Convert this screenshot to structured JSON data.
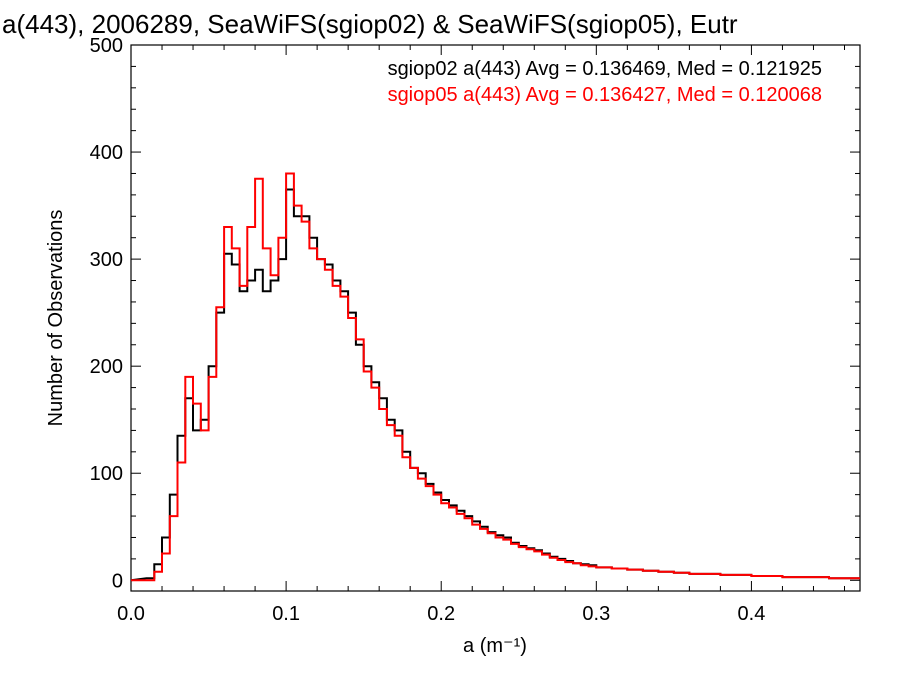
{
  "chart_data": {
    "type": "line",
    "title": "a(443), 2006289, SeaWiFS(sgiop02) & SeaWiFS(sgiop05), Eutr",
    "xlabel": "a (m⁻¹)",
    "ylabel": "Number of Observations",
    "xlim": [
      0.0,
      0.47
    ],
    "ylim": [
      -10,
      500
    ],
    "xticks": [
      0.0,
      0.1,
      0.2,
      0.3,
      0.4
    ],
    "xtick_labels": [
      "0.0",
      "0.1",
      "0.2",
      "0.3",
      "0.4"
    ],
    "yticks": [
      0,
      100,
      200,
      300,
      400,
      500
    ],
    "ytick_labels": [
      "0",
      "100",
      "200",
      "300",
      "400",
      "500"
    ],
    "grid": false,
    "legend_position": "top-right",
    "x": [
      0.015,
      0.02,
      0.025,
      0.03,
      0.035,
      0.04,
      0.045,
      0.05,
      0.055,
      0.06,
      0.065,
      0.07,
      0.075,
      0.08,
      0.085,
      0.09,
      0.095,
      0.1,
      0.105,
      0.11,
      0.115,
      0.12,
      0.125,
      0.13,
      0.135,
      0.14,
      0.145,
      0.15,
      0.155,
      0.16,
      0.165,
      0.17,
      0.175,
      0.18,
      0.185,
      0.19,
      0.195,
      0.2,
      0.205,
      0.21,
      0.215,
      0.22,
      0.225,
      0.23,
      0.235,
      0.24,
      0.245,
      0.25,
      0.255,
      0.26,
      0.265,
      0.27,
      0.275,
      0.28,
      0.285,
      0.29,
      0.295,
      0.3,
      0.31,
      0.32,
      0.33,
      0.34,
      0.35,
      0.36,
      0.37,
      0.38,
      0.39,
      0.4,
      0.41,
      0.42,
      0.43,
      0.44,
      0.45,
      0.46,
      0.47
    ],
    "series": [
      {
        "name": "sgiop02",
        "color": "#000000",
        "values": [
          2,
          15,
          40,
          80,
          135,
          170,
          140,
          150,
          200,
          250,
          305,
          295,
          270,
          280,
          290,
          270,
          280,
          300,
          365,
          340,
          340,
          320,
          300,
          295,
          280,
          270,
          250,
          220,
          200,
          185,
          170,
          150,
          140,
          120,
          105,
          100,
          90,
          82,
          75,
          70,
          65,
          60,
          55,
          50,
          45,
          42,
          40,
          35,
          32,
          30,
          28,
          25,
          22,
          20,
          18,
          16,
          15,
          14,
          12,
          11,
          10,
          9,
          8,
          7,
          6,
          6,
          5,
          5,
          4,
          4,
          3,
          3,
          3,
          2,
          2
        ],
        "stats_label": "sgiop02 a(443) Avg = 0.136469, Med = 0.121925"
      },
      {
        "name": "sgiop05",
        "color": "#ff0000",
        "values": [
          0,
          8,
          25,
          60,
          110,
          190,
          165,
          140,
          190,
          255,
          330,
          310,
          275,
          330,
          375,
          310,
          285,
          320,
          380,
          350,
          335,
          310,
          300,
          290,
          275,
          265,
          245,
          225,
          195,
          180,
          160,
          145,
          135,
          115,
          105,
          95,
          88,
          80,
          72,
          68,
          62,
          58,
          52,
          48,
          44,
          40,
          38,
          34,
          31,
          29,
          27,
          24,
          21,
          19,
          17,
          16,
          14,
          13,
          12,
          11,
          10,
          9,
          8,
          7,
          6,
          6,
          5,
          5,
          4,
          4,
          3,
          3,
          3,
          2,
          2
        ],
        "stats_label": "sgiop05 a(443) Avg = 0.136427, Med = 0.120068"
      }
    ]
  }
}
